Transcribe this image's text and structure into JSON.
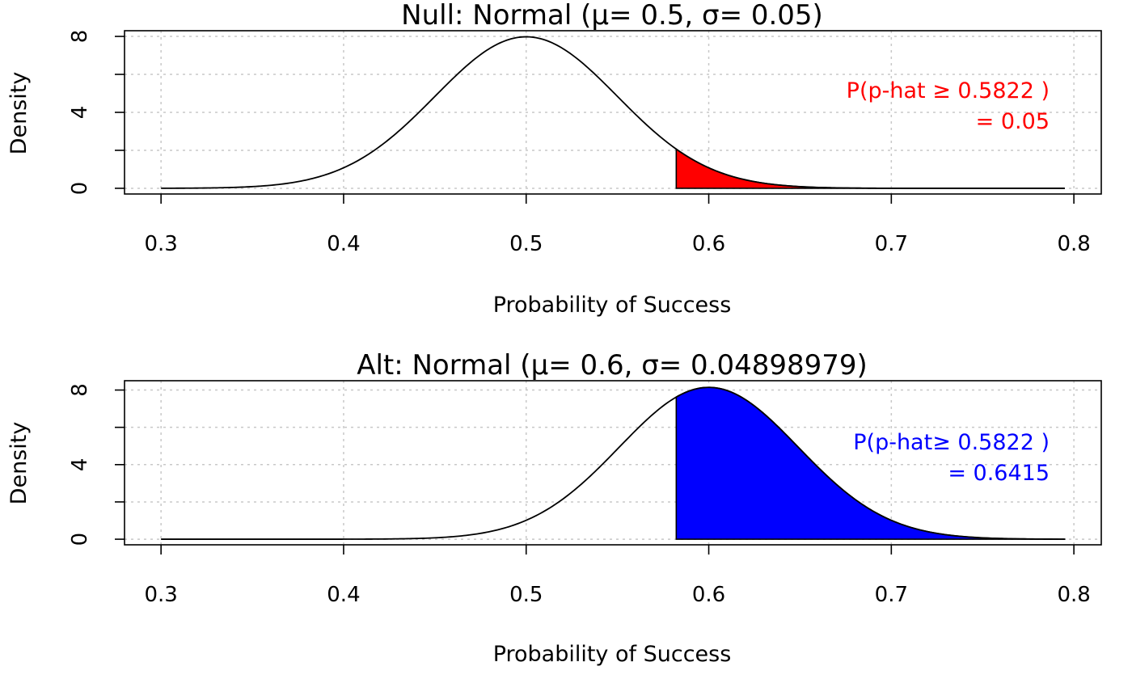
{
  "chart_data": [
    {
      "type": "area",
      "title": "Null: Normal (μ= 0.5, σ= 0.05)",
      "xlabel": "Probability of Success",
      "ylabel": "Density",
      "xlim": [
        0.28,
        0.815
      ],
      "ylim": [
        -0.3,
        8.3
      ],
      "x_ticks": [
        0.3,
        0.4,
        0.5,
        0.6,
        0.7,
        0.8
      ],
      "x_tick_labels": [
        "0.3",
        "0.4",
        "0.5",
        "0.6",
        "0.7",
        "0.8"
      ],
      "y_ticks": [
        0,
        2,
        4,
        6,
        8
      ],
      "y_tick_labels": [
        "0",
        "",
        "4",
        "",
        "8"
      ],
      "grid": true,
      "curve": {
        "distribution": "normal",
        "mean": 0.5,
        "sd": 0.05,
        "x_range": [
          0.3,
          0.795
        ]
      },
      "shaded_region": {
        "from": 0.5822,
        "to": 0.795,
        "color": "#ff0000"
      },
      "annotation": {
        "line1": "P(p-hat ≥ 0.5822 )",
        "line2": "= 0.05",
        "color": "#ff0000"
      }
    },
    {
      "type": "area",
      "title": "Alt: Normal (μ= 0.6, σ= 0.04898979)",
      "xlabel": "Probability of Success",
      "ylabel": "Density",
      "xlim": [
        0.28,
        0.815
      ],
      "ylim": [
        -0.3,
        8.5
      ],
      "x_ticks": [
        0.3,
        0.4,
        0.5,
        0.6,
        0.7,
        0.8
      ],
      "x_tick_labels": [
        "0.3",
        "0.4",
        "0.5",
        "0.6",
        "0.7",
        "0.8"
      ],
      "y_ticks": [
        0,
        2,
        4,
        6,
        8
      ],
      "y_tick_labels": [
        "0",
        "",
        "4",
        "",
        "8"
      ],
      "grid": true,
      "curve": {
        "distribution": "normal",
        "mean": 0.6,
        "sd": 0.04898979,
        "x_range": [
          0.3,
          0.795
        ]
      },
      "shaded_region": {
        "from": 0.5822,
        "to": 0.795,
        "color": "#0000ff"
      },
      "annotation": {
        "line1": "P(p-hat≥ 0.5822 )",
        "line2": "= 0.6415",
        "color": "#0000ff"
      }
    }
  ]
}
